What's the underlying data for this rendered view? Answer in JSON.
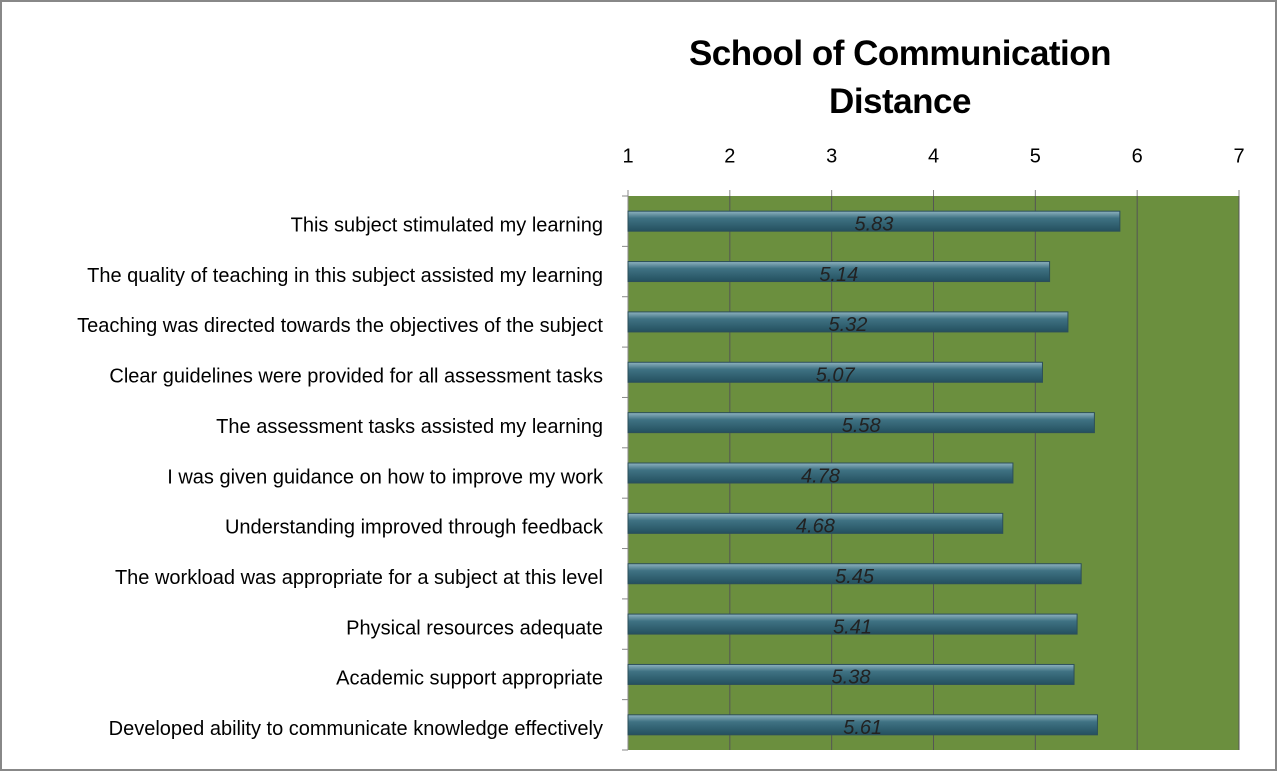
{
  "chart_data": {
    "type": "barh",
    "title": "School of Communication Distance",
    "categories": [
      "This subject stimulated my learning",
      "The quality of teaching in this subject assisted my learning",
      "Teaching was directed towards the objectives of the subject",
      "Clear guidelines were provided for all assessment tasks",
      "The assessment tasks assisted my learning",
      "I was given guidance on how to improve my work",
      "Understanding improved through feedback",
      "The workload was appropriate for a subject at this level",
      "Physical resources adequate",
      "Academic support appropriate",
      "Developed ability to communicate knowledge effectively"
    ],
    "values": [
      5.83,
      5.14,
      5.32,
      5.07,
      5.58,
      4.78,
      4.68,
      5.45,
      5.41,
      5.38,
      5.61
    ],
    "color": "#3f7283",
    "background": "#6b8f3e",
    "xlim": [
      1,
      7
    ],
    "xticks": [
      1,
      2,
      3,
      4,
      5,
      6,
      7
    ],
    "grid": true,
    "axis_position": "top"
  }
}
